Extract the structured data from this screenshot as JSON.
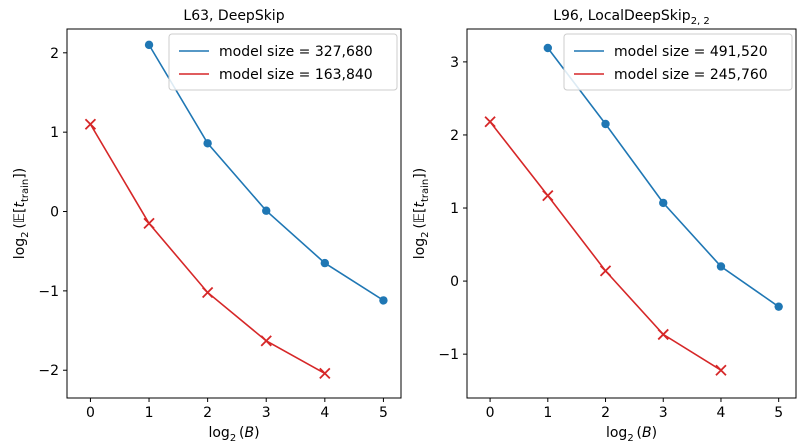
{
  "chart_data": [
    {
      "type": "line",
      "title": "L63, DeepSkip",
      "xlabel": "log2(B)",
      "ylabel": "log2(E[t_train])",
      "xlim": [
        -0.4,
        5.3
      ],
      "ylim": [
        -2.35,
        2.3
      ],
      "xticks": [
        0,
        1,
        2,
        3,
        4,
        5
      ],
      "yticks": [
        -2,
        -1,
        0,
        1,
        2
      ],
      "legend": "top-right",
      "series": [
        {
          "name": "model size = 327,680",
          "color": "#1f77b4",
          "marker": "circle",
          "x": [
            1,
            2,
            3,
            4,
            5
          ],
          "y": [
            2.1,
            0.86,
            0.01,
            -0.65,
            -1.12
          ]
        },
        {
          "name": "model size = 163,840",
          "color": "#d62728",
          "marker": "x",
          "x": [
            0,
            1,
            2,
            3,
            4
          ],
          "y": [
            1.1,
            -0.15,
            -1.02,
            -1.63,
            -2.04
          ]
        }
      ]
    },
    {
      "type": "line",
      "title": "L96, LocalDeepSkip",
      "title_sub": "2, 2",
      "xlabel": "log2(B)",
      "ylabel": "log2(E[t_train])",
      "xlim": [
        -0.4,
        5.3
      ],
      "ylim": [
        -1.6,
        3.45
      ],
      "xticks": [
        0,
        1,
        2,
        3,
        4,
        5
      ],
      "yticks": [
        -1,
        0,
        1,
        2,
        3
      ],
      "legend": "top-right",
      "series": [
        {
          "name": "model size = 491,520",
          "color": "#1f77b4",
          "marker": "circle",
          "x": [
            1,
            2,
            3,
            4,
            5
          ],
          "y": [
            3.19,
            2.15,
            1.07,
            0.2,
            -0.35
          ]
        },
        {
          "name": "model size = 245,760",
          "color": "#d62728",
          "marker": "x",
          "x": [
            0,
            1,
            2,
            3,
            4
          ],
          "y": [
            2.18,
            1.17,
            0.14,
            -0.73,
            -1.22
          ]
        }
      ]
    }
  ]
}
